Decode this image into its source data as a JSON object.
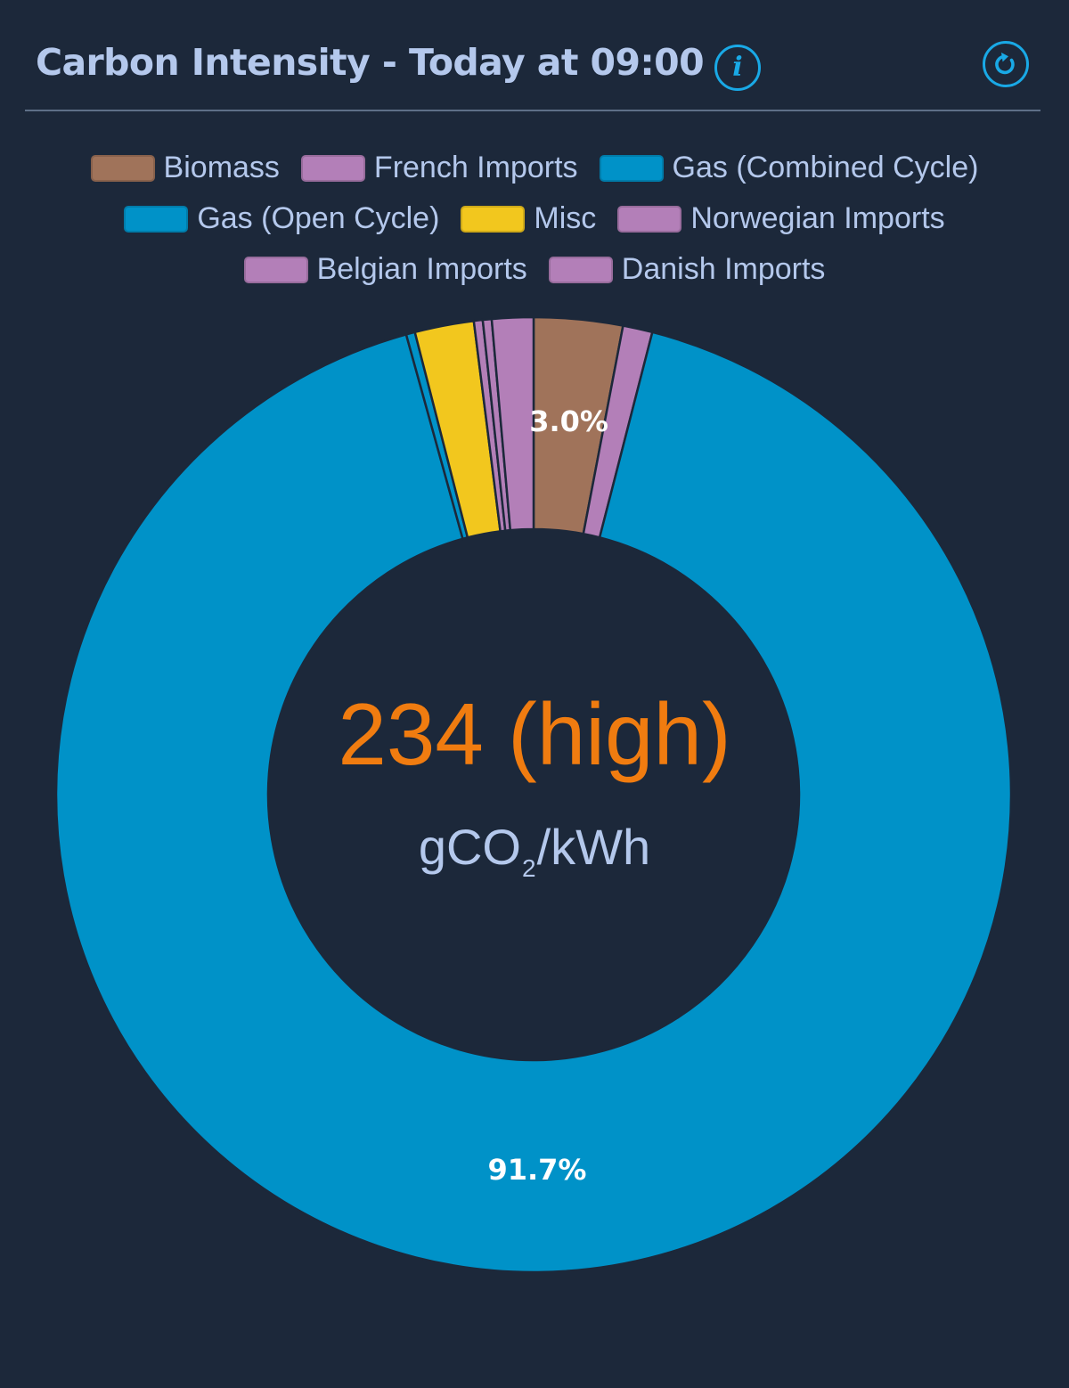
{
  "header": {
    "title": "Carbon Intensity - Today at 09:00",
    "info_icon": "info-icon",
    "refresh_icon": "refresh-icon"
  },
  "center": {
    "value": "234 (high)",
    "unit_main": "gCO",
    "unit_sub": "2",
    "unit_rest": "/kWh"
  },
  "colors": {
    "background": "#1c283a",
    "title": "#b4c8ec",
    "accent": "#19a9e6",
    "value": "#f07c10",
    "biomass": "#a0735a",
    "imports": "#b37fb8",
    "gas": "#0092c8",
    "misc": "#f2c71e"
  },
  "legend": {
    "rows": [
      [
        {
          "label": "Biomass",
          "color": "#a0735a"
        },
        {
          "label": "French Imports",
          "color": "#b37fb8"
        },
        {
          "label": "Gas (Combined Cycle)",
          "color": "#0092c8"
        }
      ],
      [
        {
          "label": "Gas (Open Cycle)",
          "color": "#0092c8"
        },
        {
          "label": "Misc",
          "color": "#f2c71e"
        },
        {
          "label": "Norwegian Imports",
          "color": "#b37fb8"
        }
      ],
      [
        {
          "label": "Belgian Imports",
          "color": "#b37fb8"
        },
        {
          "label": "Danish Imports",
          "color": "#b37fb8"
        }
      ]
    ]
  },
  "chart_data": {
    "type": "pie",
    "categories": [
      "Biomass",
      "French Imports",
      "Gas (Combined Cycle)",
      "Gas (Open Cycle)",
      "Misc",
      "Norwegian Imports",
      "Belgian Imports",
      "Danish Imports"
    ],
    "values": [
      3.0,
      1.0,
      91.7,
      0.3,
      2.0,
      0.3,
      0.3,
      1.4
    ],
    "colors": [
      "#a0735a",
      "#b37fb8",
      "#0092c8",
      "#0092c8",
      "#f2c71e",
      "#b37fb8",
      "#b37fb8",
      "#b37fb8"
    ],
    "data_labels": [
      "3.0%",
      "",
      "91.7%",
      "",
      "",
      "",
      "",
      ""
    ],
    "donut": true
  }
}
